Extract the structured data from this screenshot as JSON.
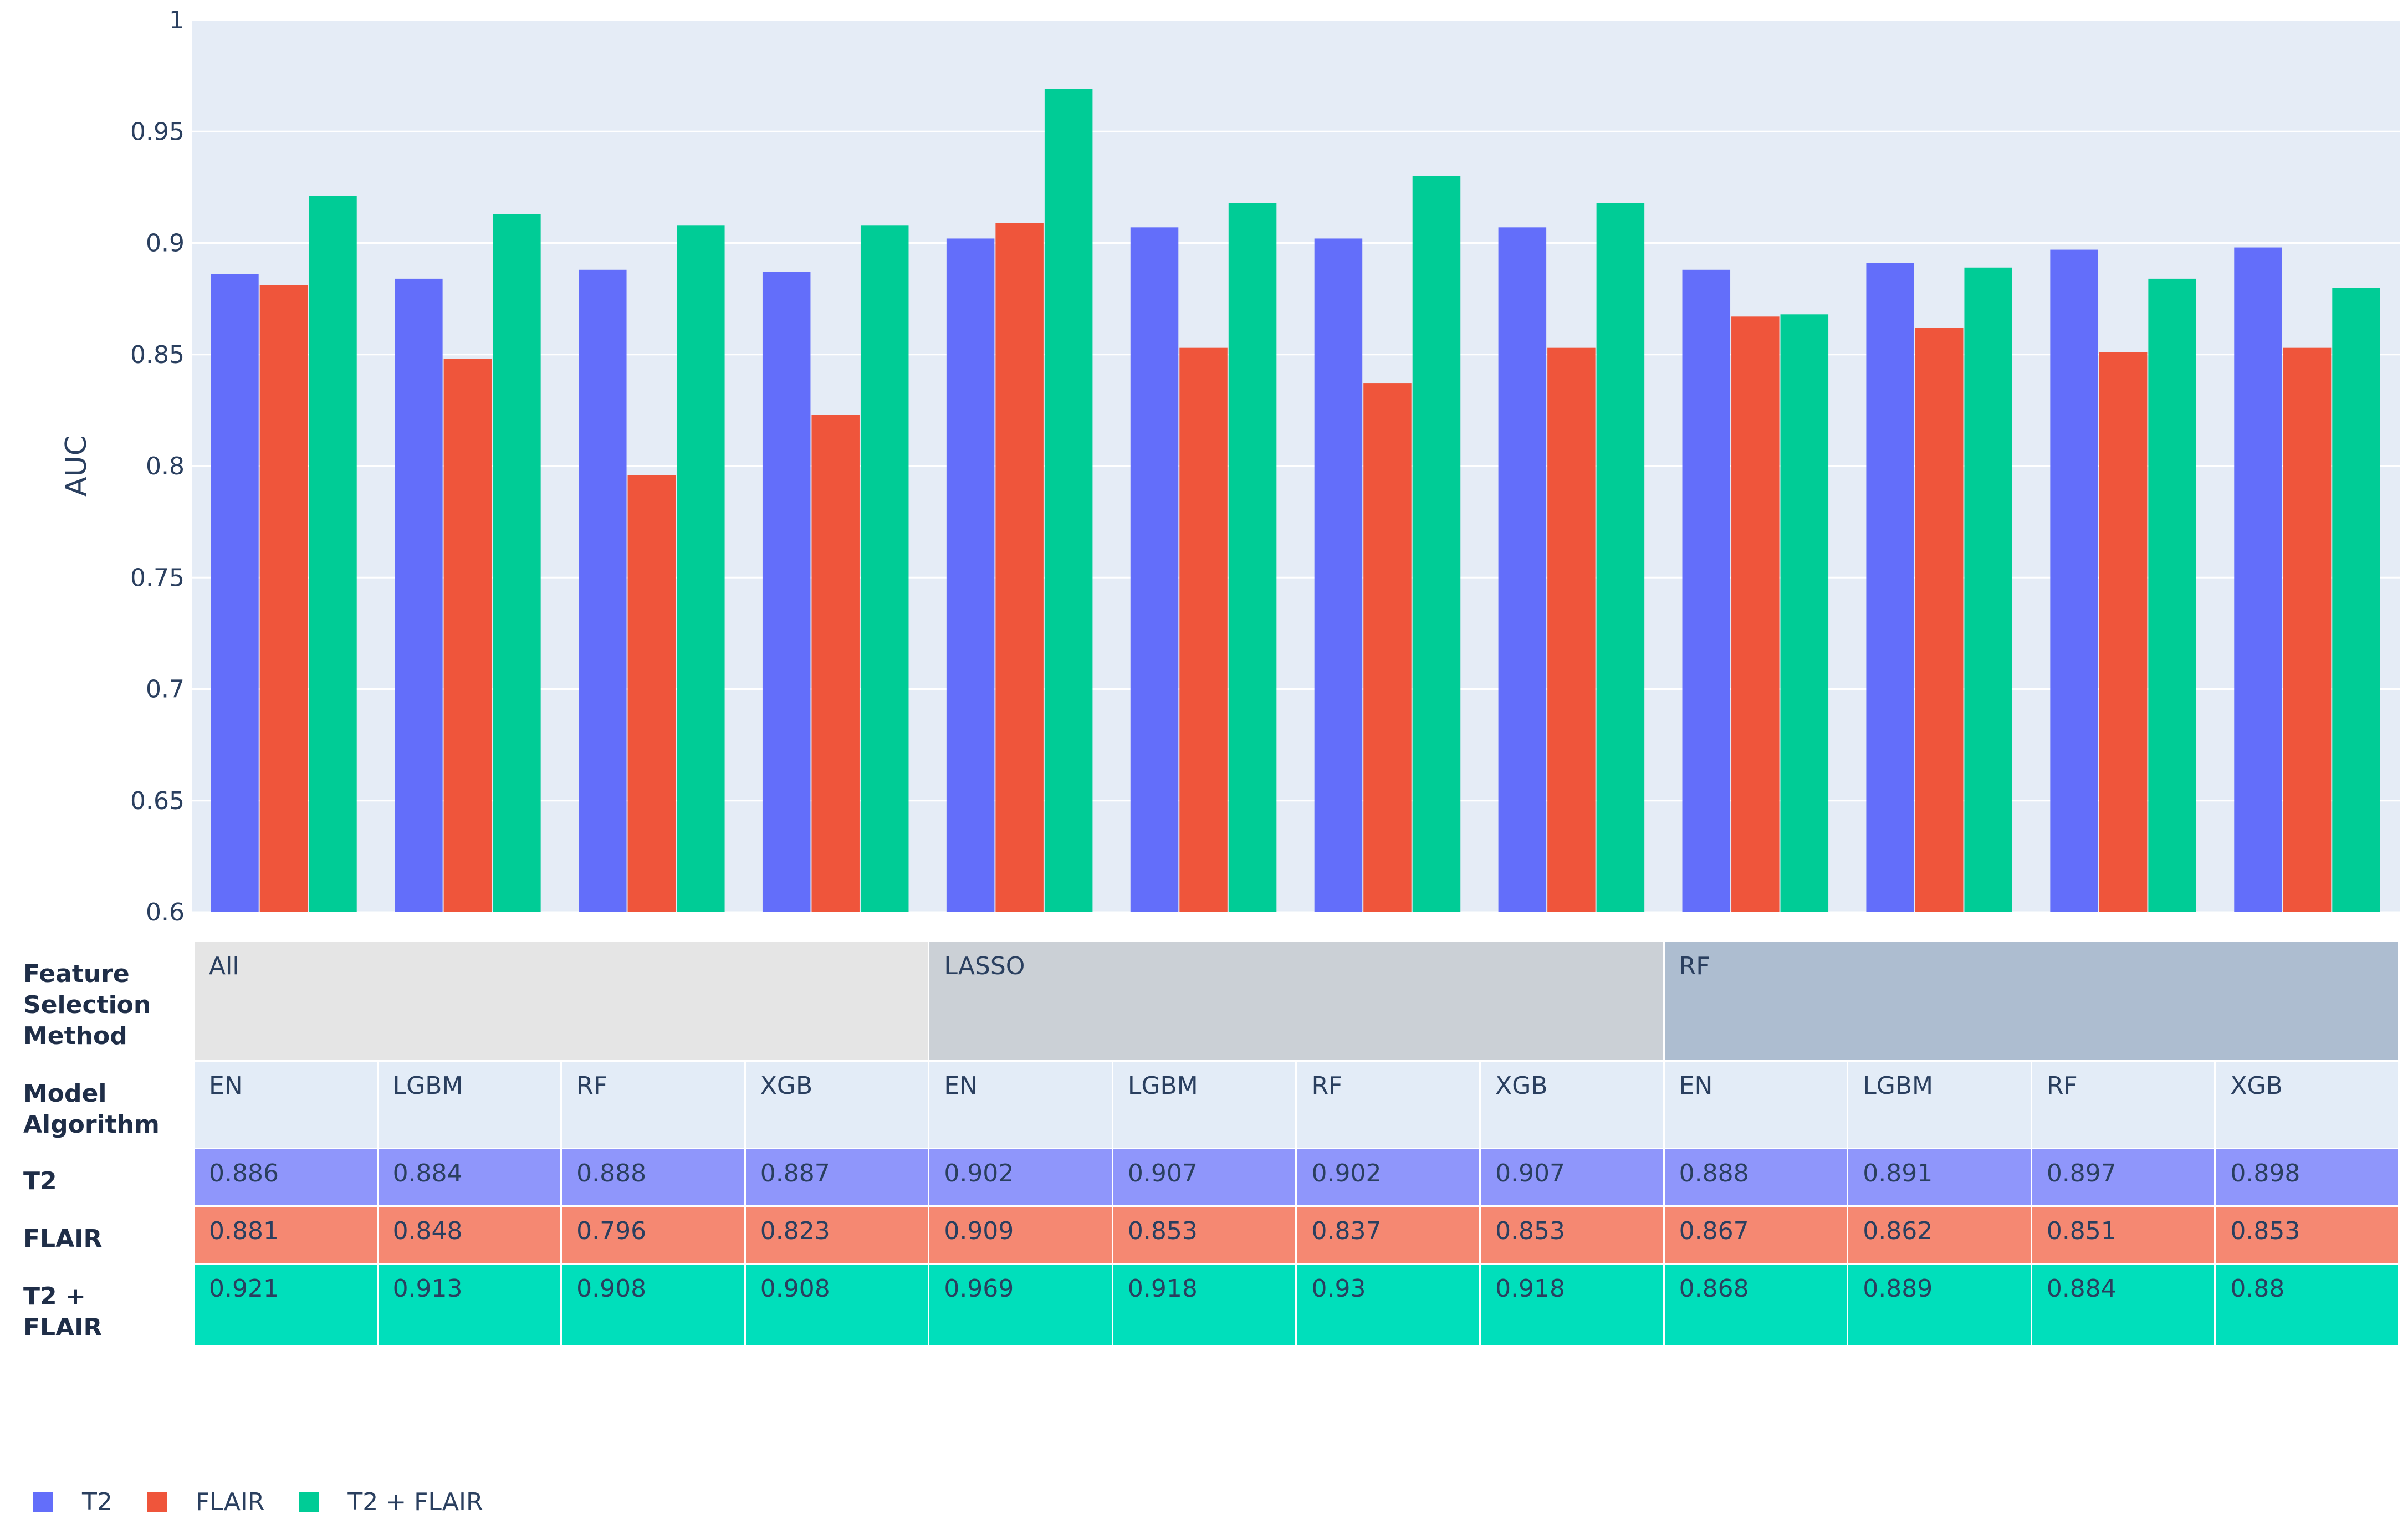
{
  "chart_data": {
    "type": "bar",
    "ylabel": "AUC",
    "ylim": [
      0.6,
      1
    ],
    "yticks": [
      "0.6",
      "0.65",
      "0.7",
      "0.75",
      "0.8",
      "0.85",
      "0.9",
      "0.95",
      "1"
    ],
    "grid": true,
    "legend_placement": "bottom-left",
    "groups": [
      {
        "feature_selection": "All",
        "model": "EN"
      },
      {
        "feature_selection": "All",
        "model": "LGBM"
      },
      {
        "feature_selection": "All",
        "model": "RF"
      },
      {
        "feature_selection": "All",
        "model": "XGB"
      },
      {
        "feature_selection": "LASSO",
        "model": "EN"
      },
      {
        "feature_selection": "LASSO",
        "model": "LGBM"
      },
      {
        "feature_selection": "LASSO",
        "model": "RF"
      },
      {
        "feature_selection": "LASSO",
        "model": "XGB"
      },
      {
        "feature_selection": "RF",
        "model": "EN"
      },
      {
        "feature_selection": "RF",
        "model": "LGBM"
      },
      {
        "feature_selection": "RF",
        "model": "RF"
      },
      {
        "feature_selection": "RF",
        "model": "XGB"
      }
    ],
    "series": [
      {
        "name": "T2",
        "color": "#636efa",
        "values": [
          0.886,
          0.884,
          0.888,
          0.887,
          0.902,
          0.907,
          0.902,
          0.907,
          0.888,
          0.891,
          0.897,
          0.898
        ]
      },
      {
        "name": "FLAIR",
        "color": "#ef553b",
        "values": [
          0.881,
          0.848,
          0.796,
          0.823,
          0.909,
          0.853,
          0.837,
          0.853,
          0.867,
          0.862,
          0.851,
          0.853
        ]
      },
      {
        "name": "T2 + FLAIR",
        "color": "#00cc96",
        "values": [
          0.921,
          0.913,
          0.908,
          0.908,
          0.969,
          0.918,
          0.93,
          0.918,
          0.868,
          0.889,
          0.884,
          0.88
        ]
      }
    ]
  },
  "table": {
    "row_labels": {
      "feature_selection": [
        "Feature",
        "Selection",
        "Method"
      ],
      "model": [
        "Model",
        "Algorithm"
      ],
      "t2": [
        "T2"
      ],
      "flair": [
        "FLAIR"
      ],
      "combo": [
        "T2 +",
        "FLAIR"
      ]
    },
    "feature_selection_blocks": [
      {
        "label": "All",
        "color": "#e5e5e5"
      },
      {
        "label": "LASSO",
        "color": "#cbd0d6"
      },
      {
        "label": "RF",
        "color": "#adbdd0"
      }
    ],
    "models": [
      "EN",
      "LGBM",
      "RF",
      "XGB",
      "EN",
      "LGBM",
      "RF",
      "XGB",
      "EN",
      "LGBM",
      "RF",
      "XGB"
    ],
    "t2": [
      "0.886",
      "0.884",
      "0.888",
      "0.887",
      "0.902",
      "0.907",
      "0.902",
      "0.907",
      "0.888",
      "0.891",
      "0.897",
      "0.898"
    ],
    "flair": [
      "0.881",
      "0.848",
      "0.796",
      "0.823",
      "0.909",
      "0.853",
      "0.837",
      "0.853",
      "0.867",
      "0.862",
      "0.851",
      "0.853"
    ],
    "combo": [
      "0.921",
      "0.913",
      "0.908",
      "0.908",
      "0.969",
      "0.918",
      "0.93",
      "0.918",
      "0.868",
      "0.889",
      "0.884",
      "0.88"
    ],
    "colors": {
      "model_row": "#e3ecf7",
      "t2": "#8f96fb",
      "flair": "#f58872",
      "combo": "#00dfbb"
    }
  },
  "legend": [
    {
      "label": "T2",
      "color": "#636efa"
    },
    {
      "label": "FLAIR",
      "color": "#ef553b"
    },
    {
      "label": "T2 + FLAIR",
      "color": "#00cc96"
    }
  ]
}
